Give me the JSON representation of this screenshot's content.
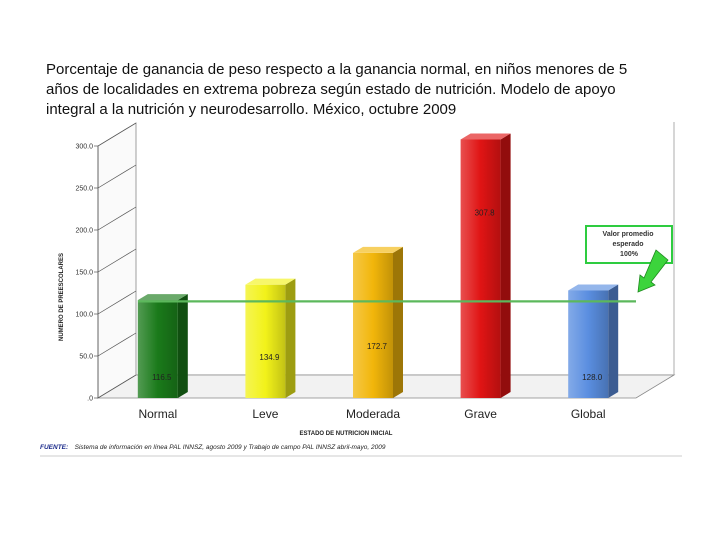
{
  "title": "Porcentaje de ganancia de peso respecto a la ganancia normal, en niños menores de 5 años de localidades en extrema pobreza según estado de nutrición. Modelo de apoyo integral a la nutrición y neurodesarrollo. México, octubre 2009",
  "chart_data": {
    "type": "bar",
    "categories": [
      "Normal",
      "Leve",
      "Moderada",
      "Grave",
      "Global"
    ],
    "values": [
      116.5,
      134.9,
      172.7,
      307.8,
      128.0
    ],
    "value_labels": [
      "116.5",
      "134.9",
      "172.7",
      "307.8",
      "128.0"
    ],
    "colors": [
      "#1a7a1a",
      "#f2f21a",
      "#f2b60a",
      "#e01414",
      "#5a8ee0"
    ],
    "xlabel": "ESTADO DE NUTRICION INICIAL",
    "ylabel": "NUMERO DE PREESCOLARES",
    "ylim": [
      0,
      300
    ],
    "yticks": [
      0,
      50,
      100,
      150,
      200,
      250,
      300
    ],
    "ytick_labels": [
      ".0",
      "50.0",
      "100.0",
      "150.0",
      "200.0",
      "250.0",
      "300.0"
    ],
    "reference_line": 115,
    "reference_color": "#5cb85c",
    "annotation": "Valor promedio esperado 100%",
    "grid": false,
    "legend": "none"
  },
  "source": {
    "label": "FUENTE:",
    "text": "Sistema de información en línea PAL  INNSZ, agosto 2009 y Trabajo de campo PAL INNSZ abril-mayo, 2009"
  }
}
